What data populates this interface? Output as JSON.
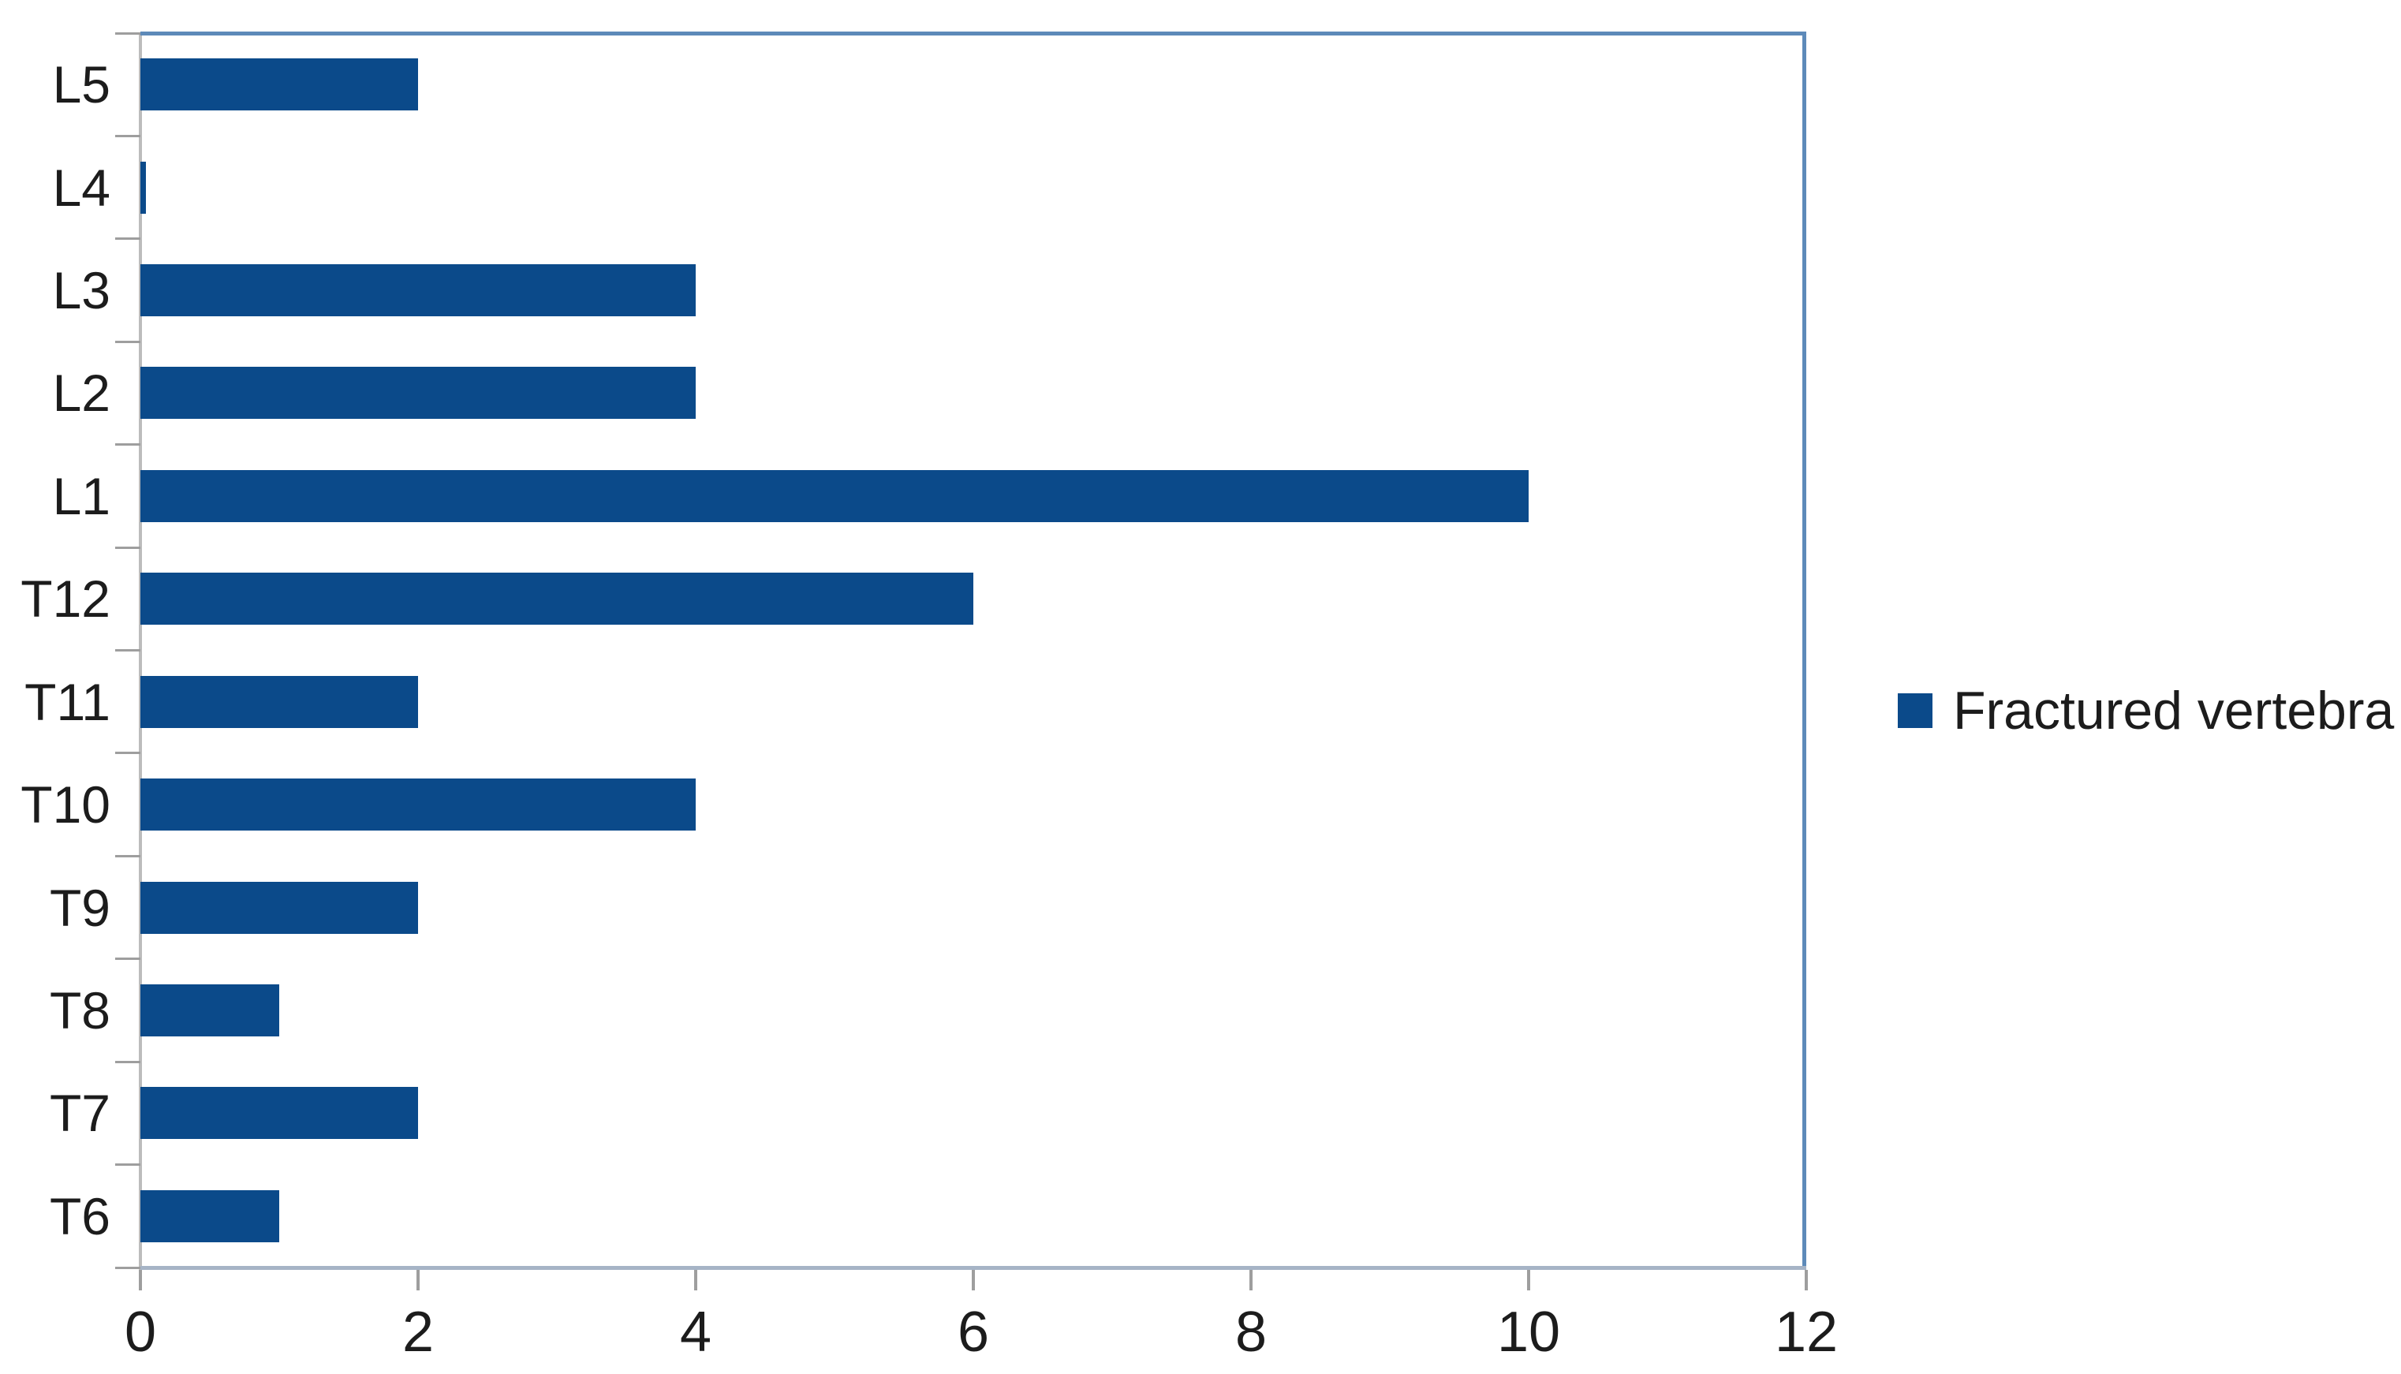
{
  "chart_data": {
    "type": "bar",
    "orientation": "horizontal",
    "title": "",
    "xlabel": "",
    "ylabel": "",
    "categories": [
      "L5",
      "L4",
      "L3",
      "L2",
      "L1",
      "T12",
      "T11",
      "T10",
      "T9",
      "T8",
      "T7",
      "T6"
    ],
    "series": [
      {
        "name": "Fractured vertebra",
        "values": [
          2,
          0,
          4,
          4,
          10,
          6,
          2,
          4,
          2,
          1,
          2,
          1
        ]
      }
    ],
    "x_ticks": [
      0,
      2,
      4,
      6,
      8,
      10,
      12
    ],
    "xlim": [
      0,
      12
    ],
    "grid": false,
    "legend_position": "right",
    "bar_color": "#0b4a8a",
    "frame_color": "#5d8ab9",
    "axis_line_color": "#a6b4c6",
    "tick_color": "#9e9e9e",
    "text_color": "#1c1c1c"
  }
}
